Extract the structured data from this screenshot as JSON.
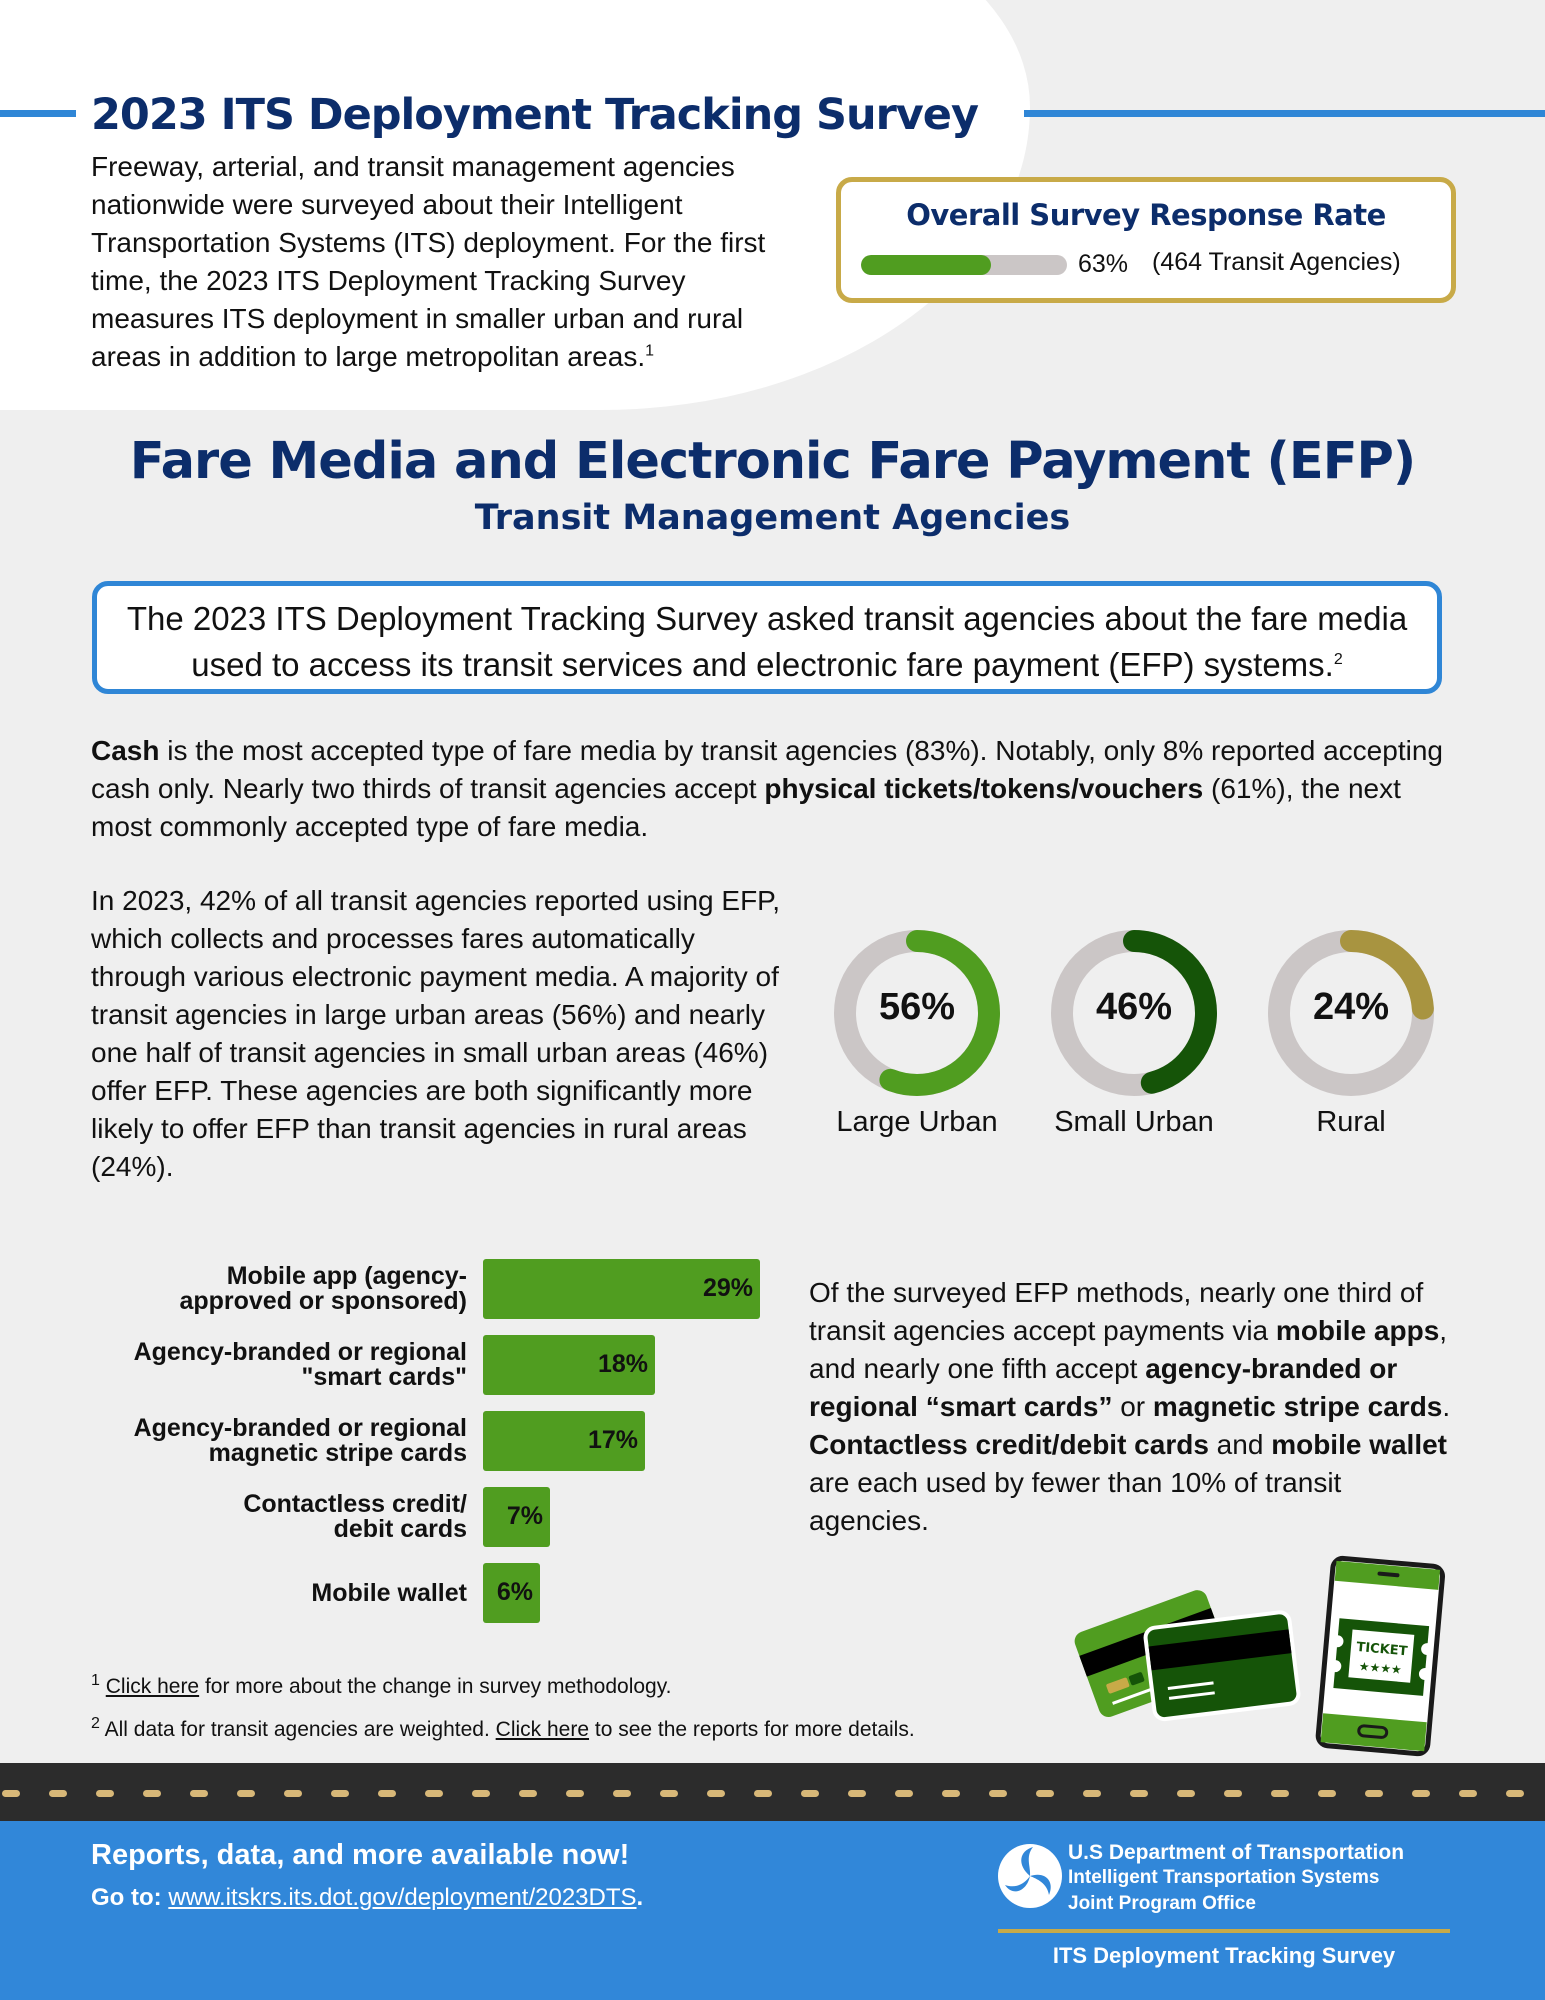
{
  "header": {
    "title": "2023 ITS Deployment Tracking Survey",
    "intro": "Freeway, arterial, and transit management agencies nationwide were surveyed about their Intelligent Transportation Systems (ITS) deployment. For the first time, the 2023 ITS Deployment Tracking Survey measures ITS deployment in smaller urban and rural areas in addition to large metropolitan areas.",
    "intro_footnote": "1"
  },
  "response_rate": {
    "title": "Overall Survey Response Rate",
    "percent": 63,
    "percent_label": "63%",
    "count_label": "(464 Transit Agencies)"
  },
  "section": {
    "title": "Fare Media and Electronic Fare Payment (EFP)",
    "subtitle": "Transit Management Agencies",
    "callout": "The 2023 ITS Deployment Tracking Survey asked transit agencies about the fare media used to access its transit services and electronic fare payment (EFP) systems.",
    "callout_footnote": "2"
  },
  "para_cash": {
    "b1": "Cash",
    "t1": " is the most accepted type of fare media by transit agencies (83%). Notably, only 8% reported accepting cash only. Nearly two thirds of transit agencies accept ",
    "b2": "physical tickets/tokens/vouchers",
    "t2": " (61%), the next most commonly accepted type of fare media."
  },
  "para_efp": "In 2023, 42% of all transit agencies reported using EFP, which collects and processes fares automatically through various electronic payment media.  A majority of transit agencies in large urban areas (56%) and nearly one half of transit agencies in small urban areas (46%) offer EFP. These agencies are both significantly more likely to offer EFP than transit agencies in rural areas (24%).",
  "para_methods": {
    "t1": "Of the surveyed EFP methods, nearly one third of transit agencies accept payments via ",
    "b1": "mobile apps",
    "t2": ", and nearly one fifth accept ",
    "b2": "agency-branded or regional “smart cards”",
    "t3": " or ",
    "b3": "magnetic stripe cards",
    "t4": ". ",
    "b4": "Contactless credit/debit cards",
    "t5": " and ",
    "b5": "mobile wallet",
    "t6": " are each used by fewer than 10% of transit agencies."
  },
  "colors": {
    "navy": "#0c2d6b",
    "blue": "#2f86d6",
    "gold": "#c8aa48",
    "green": "#509d20",
    "dark_green": "#155408",
    "olive": "#a89440",
    "gray_track": "#cbc6c6"
  },
  "chart_data": [
    {
      "type": "pie",
      "title": "Transit agencies offering EFP by area type",
      "categories": [
        "Large Urban",
        "Small Urban",
        "Rural"
      ],
      "values": [
        56,
        46,
        24
      ],
      "value_labels": [
        "56%",
        "46%",
        "24%"
      ],
      "colors": [
        "#509d20",
        "#155408",
        "#a89440"
      ]
    },
    {
      "type": "bar",
      "orientation": "horizontal",
      "title": "EFP methods accepted by transit agencies",
      "categories": [
        "Mobile app (agency-approved or sponsored)",
        "Agency-branded or regional \"smart cards\"",
        "Agency-branded or regional magnetic stripe cards",
        "Contactless credit/debit cards",
        "Mobile wallet"
      ],
      "values": [
        29,
        18,
        17,
        7,
        6
      ],
      "value_labels": [
        "29%",
        "18%",
        "17%",
        "7%",
        "6%"
      ],
      "xlim": [
        0,
        29
      ]
    }
  ],
  "donuts": [
    {
      "label": "Large Urban",
      "value": 56,
      "text": "56%",
      "color": "#509d20"
    },
    {
      "label": "Small Urban",
      "value": 46,
      "text": "46%",
      "color": "#155408"
    },
    {
      "label": "Rural",
      "value": 24,
      "text": "24%",
      "color": "#a89440"
    }
  ],
  "bars": [
    {
      "line1": "Mobile app (agency-",
      "line2": "approved or sponsored)",
      "value": 29,
      "text": "29%"
    },
    {
      "line1": "Agency-branded or regional",
      "line2": "\"smart cards\"",
      "value": 18,
      "text": "18%"
    },
    {
      "line1": "Agency-branded or regional",
      "line2": "magnetic stripe cards",
      "value": 17,
      "text": "17%"
    },
    {
      "line1": "Contactless credit/",
      "line2": "debit cards",
      "value": 7,
      "text": "7%"
    },
    {
      "line1": "Mobile wallet",
      "line2": "",
      "value": 6,
      "text": "6%"
    }
  ],
  "illustration": {
    "ticket_text": "TICKET",
    "stars": "★★★★"
  },
  "footnotes": [
    {
      "num": "1",
      "link": "Click here",
      "text": " for more about the change in survey methodology."
    },
    {
      "num": "2",
      "pre": "All data for transit agencies are weighted. ",
      "link": "Click here",
      "text": " to see the reports for more details."
    }
  ],
  "footer": {
    "headline": "Reports, data, and more available now!",
    "go_label": "Go to: ",
    "url": "www.itskrs.its.dot.gov/deployment/2023DTS",
    "url_suffix": ".",
    "dot_line1": "U.S Department of Transportation",
    "dot_line2": "Intelligent Transportation Systems",
    "dot_line3": "Joint Program Office",
    "survey_name": "ITS Deployment Tracking Survey"
  }
}
